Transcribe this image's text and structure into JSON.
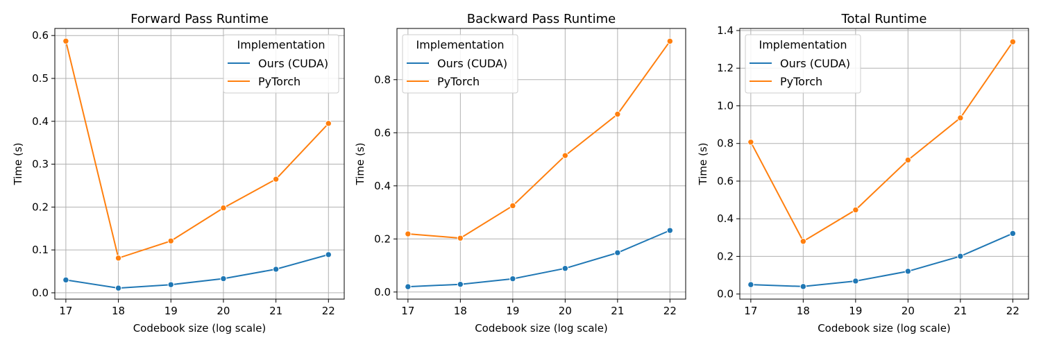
{
  "colors": {
    "cuda": "#1f77b4",
    "pytorch": "#ff7f0e",
    "grid": "#b0b0b0"
  },
  "chart_data": [
    {
      "type": "line",
      "title": "Forward Pass Runtime",
      "xlabel": "Codebook size (log scale)",
      "ylabel": "Time (s)",
      "x": [
        17,
        18,
        19,
        20,
        21,
        22
      ],
      "xlim": [
        16.79,
        22.3
      ],
      "ylim": [
        -0.0147,
        0.6165
      ],
      "yticks": [
        0.0,
        0.1,
        0.2,
        0.3,
        0.4,
        0.5,
        0.6
      ],
      "ytick_labels": [
        "0.0",
        "0.1",
        "0.2",
        "0.3",
        "0.4",
        "0.5",
        "0.6"
      ],
      "grid": true,
      "legend": {
        "title": "Implementation",
        "placement": "top-right"
      },
      "series": [
        {
          "name": "Ours (CUDA)",
          "color_key": "cuda",
          "values": [
            0.03,
            0.011,
            0.019,
            0.033,
            0.055,
            0.089
          ]
        },
        {
          "name": "PyTorch",
          "color_key": "pytorch",
          "values": [
            0.587,
            0.081,
            0.121,
            0.198,
            0.265,
            0.395
          ]
        }
      ]
    },
    {
      "type": "line",
      "title": "Backward Pass Runtime",
      "xlabel": "Codebook size (log scale)",
      "ylabel": "Time (s)",
      "x": [
        17,
        18,
        19,
        20,
        21,
        22
      ],
      "xlim": [
        16.79,
        22.3
      ],
      "ylim": [
        -0.0267,
        0.9929
      ],
      "yticks": [
        0.0,
        0.2,
        0.4,
        0.6,
        0.8
      ],
      "ytick_labels": [
        "0.0",
        "0.2",
        "0.4",
        "0.6",
        "0.8"
      ],
      "grid": true,
      "legend": {
        "title": "Implementation",
        "placement": "top-left"
      },
      "series": [
        {
          "name": "Ours (CUDA)",
          "color_key": "cuda",
          "values": [
            0.02,
            0.029,
            0.05,
            0.089,
            0.148,
            0.232
          ]
        },
        {
          "name": "PyTorch",
          "color_key": "pytorch",
          "values": [
            0.219,
            0.203,
            0.325,
            0.514,
            0.67,
            0.945
          ]
        }
      ]
    },
    {
      "type": "line",
      "title": "Total Runtime",
      "xlabel": "Codebook size (log scale)",
      "ylabel": "Time (s)",
      "x": [
        17,
        18,
        19,
        20,
        21,
        22
      ],
      "xlim": [
        16.79,
        22.3
      ],
      "ylim": [
        -0.027,
        1.411
      ],
      "yticks": [
        0.0,
        0.2,
        0.4,
        0.6,
        0.8,
        1.0,
        1.2,
        1.4
      ],
      "ytick_labels": [
        "0.0",
        "0.2",
        "0.4",
        "0.6",
        "0.8",
        "1.0",
        "1.2",
        "1.4"
      ],
      "grid": true,
      "legend": {
        "title": "Implementation",
        "placement": "top-left"
      },
      "series": [
        {
          "name": "Ours (CUDA)",
          "color_key": "cuda",
          "values": [
            0.05,
            0.04,
            0.069,
            0.121,
            0.201,
            0.322
          ]
        },
        {
          "name": "PyTorch",
          "color_key": "pytorch",
          "values": [
            0.807,
            0.28,
            0.447,
            0.712,
            0.936,
            1.34
          ]
        }
      ]
    }
  ]
}
